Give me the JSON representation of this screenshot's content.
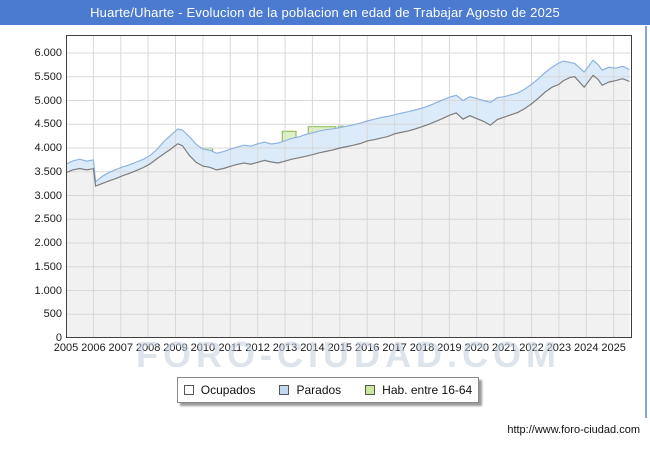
{
  "window": {
    "title": "Huarte/Uharte - Evolucion de la poblacion en edad de Trabajar Agosto de 2025"
  },
  "watermark": {
    "text": "FORO-CIUDAD.COM"
  },
  "footer": {
    "url": "http://www.foro-ciudad.com"
  },
  "legend": {
    "items": [
      {
        "label": "Ocupados",
        "color": "#ffffff"
      },
      {
        "label": "Parados",
        "color": "#c3d9f0"
      },
      {
        "label": "Hab. entre 16-64",
        "color": "#cce69c"
      }
    ]
  },
  "colors": {
    "titlebar_bg": "#4a7bd0",
    "ocupados_line": "#7d7d7d",
    "ocupados_fill": "#f1f1f1",
    "parados_line": "#8fb3de",
    "parados_fill": "#dcebfa",
    "hab_line": "#94bf62",
    "hab_fill": "#def0c6",
    "grid": "#d8d8d8",
    "frame": "#3f3f3f"
  },
  "chart_data": {
    "type": "area",
    "stacked": true,
    "title": "Huarte/Uharte - Evolucion de la poblacion en edad de Trabajar Agosto de 2025",
    "xlabel": "",
    "ylabel": "",
    "xlim": [
      2005,
      2025.67
    ],
    "ylim": [
      0,
      6380
    ],
    "grid": true,
    "legend_position": "bottom",
    "y_ticks": [
      "0",
      "500",
      "1.000",
      "1.500",
      "2.000",
      "2.500",
      "3.000",
      "3.500",
      "4.000",
      "4.500",
      "5.000",
      "5.500",
      "6.000"
    ],
    "x_ticks": [
      "2005",
      "2006",
      "2007",
      "2008",
      "2009",
      "2010",
      "2011",
      "2012",
      "2013",
      "2014",
      "2015",
      "2016",
      "2017",
      "2018",
      "2019",
      "2020",
      "2021",
      "2022",
      "2023",
      "2024",
      "2025"
    ],
    "x": [
      2005.0,
      2005.25,
      2005.5,
      2005.75,
      2006.0,
      2006.08,
      2006.33,
      2006.58,
      2006.83,
      2007.08,
      2007.33,
      2007.58,
      2007.83,
      2008.08,
      2008.33,
      2008.58,
      2008.83,
      2009.08,
      2009.25,
      2009.5,
      2009.75,
      2010.0,
      2010.25,
      2010.5,
      2010.75,
      2011.0,
      2011.25,
      2011.5,
      2011.75,
      2012.0,
      2012.25,
      2012.5,
      2012.75,
      2013.0,
      2013.25,
      2013.5,
      2013.75,
      2014.0,
      2014.25,
      2014.5,
      2014.75,
      2015.0,
      2015.25,
      2015.5,
      2015.75,
      2016.0,
      2016.25,
      2016.5,
      2016.75,
      2017.0,
      2017.25,
      2017.5,
      2017.75,
      2018.0,
      2018.25,
      2018.5,
      2018.75,
      2019.0,
      2019.25,
      2019.5,
      2019.75,
      2020.0,
      2020.25,
      2020.5,
      2020.75,
      2021.0,
      2021.25,
      2021.5,
      2021.75,
      2022.0,
      2022.25,
      2022.5,
      2022.75,
      2023.0,
      2023.17,
      2023.42,
      2023.58,
      2023.92,
      2024.08,
      2024.25,
      2024.42,
      2024.58,
      2024.83,
      2025.08,
      2025.33,
      2025.58
    ],
    "series": [
      {
        "name": "Ocupados",
        "values": [
          3480,
          3540,
          3570,
          3540,
          3565,
          3200,
          3255,
          3310,
          3360,
          3420,
          3470,
          3530,
          3590,
          3670,
          3780,
          3880,
          3980,
          4090,
          4050,
          3850,
          3700,
          3620,
          3595,
          3540,
          3570,
          3615,
          3655,
          3685,
          3660,
          3700,
          3740,
          3705,
          3685,
          3725,
          3765,
          3795,
          3825,
          3860,
          3900,
          3930,
          3960,
          4000,
          4030,
          4060,
          4095,
          4150,
          4175,
          4210,
          4240,
          4300,
          4330,
          4360,
          4400,
          4450,
          4500,
          4560,
          4620,
          4690,
          4740,
          4610,
          4680,
          4620,
          4560,
          4480,
          4600,
          4650,
          4700,
          4750,
          4830,
          4930,
          5050,
          5180,
          5280,
          5340,
          5420,
          5490,
          5500,
          5280,
          5400,
          5530,
          5450,
          5320,
          5390,
          5420,
          5460,
          5400
        ]
      },
      {
        "name": "Parados",
        "values": [
          180,
          190,
          195,
          185,
          185,
          90,
          150,
          180,
          190,
          185,
          180,
          175,
          175,
          175,
          195,
          260,
          290,
          310,
          330,
          390,
          380,
          360,
          360,
          350,
          355,
          360,
          365,
          375,
          380,
          390,
          385,
          380,
          420,
          430,
          440,
          440,
          460,
          460,
          460,
          455,
          445,
          430,
          430,
          430,
          430,
          420,
          430,
          430,
          425,
          400,
          405,
          405,
          400,
          390,
          390,
          390,
          390,
          380,
          370,
          390,
          400,
          420,
          440,
          480,
          460,
          430,
          420,
          410,
          410,
          410,
          410,
          410,
          420,
          450,
          410,
          310,
          280,
          320,
          320,
          320,
          310,
          320,
          310,
          260,
          260,
          250
        ]
      },
      {
        "name": "Hab. entre 16-64",
        "note": "step line, visible only where it exceeds Ocupados+Parados",
        "segments": [
          {
            "from": 2009.95,
            "to": 2010.35,
            "value": 4000
          },
          {
            "from": 2012.9,
            "to": 2013.4,
            "value": 4350
          },
          {
            "from": 2013.85,
            "to": 2014.85,
            "value": 4450
          },
          {
            "from": 2014.95,
            "to": 2015.12,
            "value": 4460
          }
        ]
      }
    ]
  }
}
